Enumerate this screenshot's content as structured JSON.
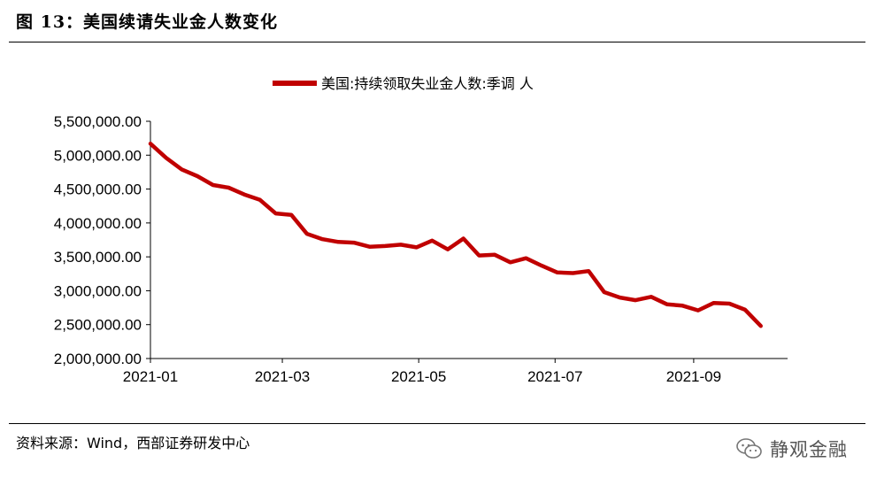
{
  "figure": {
    "title": "图 13：美国续请失业金人数变化",
    "source": "资料来源：Wind，西部证券研发中心",
    "watermark": "静观金融"
  },
  "chart_data": {
    "type": "line",
    "title": "",
    "xlabel": "",
    "ylabel": "",
    "ylim": [
      2000000,
      5500000
    ],
    "y_ticks": [
      2000000,
      2500000,
      3000000,
      3500000,
      4000000,
      4500000,
      5000000,
      5500000
    ],
    "y_tick_labels": [
      "2,000,000.00",
      "2,500,000.00",
      "3,000,000.00",
      "3,500,000.00",
      "4,000,000.00",
      "4,500,000.00",
      "5,000,000.00",
      "5,500,000.00"
    ],
    "x_tick_dates": [
      "2021-01-01",
      "2021-03-01",
      "2021-05-01",
      "2021-07-01",
      "2021-09-01"
    ],
    "x_tick_labels": [
      "2021-01",
      "2021-03",
      "2021-05",
      "2021-07",
      "2021-09"
    ],
    "legend": {
      "position": "top-center"
    },
    "grid": false,
    "color": "#c00000",
    "series": [
      {
        "name": "美国:持续领取失业金人数:季调 人",
        "x": [
          "2021-01-01",
          "2021-01-08",
          "2021-01-15",
          "2021-01-22",
          "2021-01-29",
          "2021-02-05",
          "2021-02-12",
          "2021-02-19",
          "2021-02-26",
          "2021-03-05",
          "2021-03-12",
          "2021-03-19",
          "2021-03-26",
          "2021-04-02",
          "2021-04-09",
          "2021-04-16",
          "2021-04-23",
          "2021-04-30",
          "2021-05-07",
          "2021-05-14",
          "2021-05-21",
          "2021-05-28",
          "2021-06-04",
          "2021-06-11",
          "2021-06-18",
          "2021-06-25",
          "2021-07-02",
          "2021-07-09",
          "2021-07-16",
          "2021-07-23",
          "2021-07-30",
          "2021-08-06",
          "2021-08-13",
          "2021-08-20",
          "2021-08-27",
          "2021-09-03",
          "2021-09-10",
          "2021-09-17",
          "2021-09-24",
          "2021-10-01"
        ],
        "y": [
          5170000,
          4960000,
          4790000,
          4690000,
          4560000,
          4520000,
          4420000,
          4340000,
          4140000,
          4120000,
          3840000,
          3760000,
          3720000,
          3710000,
          3650000,
          3660000,
          3680000,
          3640000,
          3740000,
          3610000,
          3770000,
          3520000,
          3530000,
          3420000,
          3480000,
          3370000,
          3270000,
          3260000,
          3290000,
          2980000,
          2900000,
          2860000,
          2910000,
          2800000,
          2780000,
          2710000,
          2820000,
          2810000,
          2720000,
          2480000
        ]
      }
    ]
  }
}
